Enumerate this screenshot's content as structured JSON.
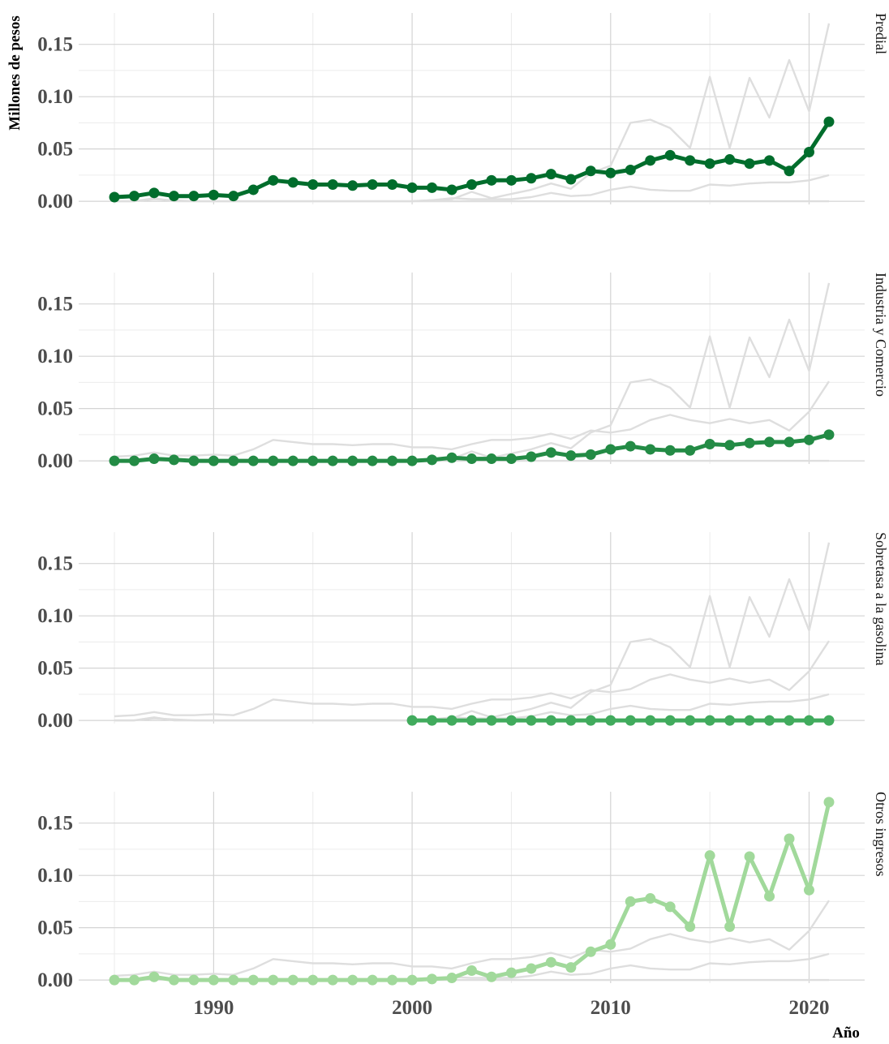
{
  "chart_data": {
    "type": "line",
    "layout": "small-multiples",
    "ylabel": "Millones de pesos",
    "xlabel": "Año",
    "ylim": [
      -0.003,
      0.18
    ],
    "xlim": [
      1983.2,
      2022.8
    ],
    "y_ticks": [
      0.0,
      0.05,
      0.1,
      0.15
    ],
    "y_tick_labels": [
      "0.00",
      "0.05",
      "0.10",
      "0.15"
    ],
    "x_ticks": [
      1990,
      2000,
      2010,
      2020
    ],
    "x_tick_labels": [
      "1990",
      "2000",
      "2010",
      "2020"
    ],
    "grid": true,
    "x": [
      1985,
      1986,
      1987,
      1988,
      1989,
      1990,
      1991,
      1992,
      1993,
      1994,
      1995,
      1996,
      1997,
      1998,
      1999,
      2000,
      2001,
      2002,
      2003,
      2004,
      2005,
      2006,
      2007,
      2008,
      2009,
      2010,
      2011,
      2012,
      2013,
      2014,
      2015,
      2016,
      2017,
      2018,
      2019,
      2020,
      2021
    ],
    "series": [
      {
        "name": "Predial",
        "color": "#006d2c",
        "values": [
          0.004,
          0.005,
          0.008,
          0.005,
          0.005,
          0.006,
          0.005,
          0.011,
          0.02,
          0.018,
          0.016,
          0.016,
          0.015,
          0.016,
          0.016,
          0.013,
          0.013,
          0.011,
          0.016,
          0.02,
          0.02,
          0.022,
          0.026,
          0.021,
          0.029,
          0.027,
          0.03,
          0.039,
          0.044,
          0.039,
          0.036,
          0.04,
          0.036,
          0.039,
          0.029,
          0.047,
          0.076
        ]
      },
      {
        "name": "Industria y Comercio",
        "color": "#238b45",
        "values": [
          0.0,
          0.0,
          0.002,
          0.001,
          0.0,
          0.0,
          0.0,
          0.0,
          0.0,
          0.0,
          0.0,
          0.0,
          0.0,
          0.0,
          0.0,
          0.0,
          0.001,
          0.003,
          0.002,
          0.002,
          0.002,
          0.004,
          0.008,
          0.005,
          0.006,
          0.011,
          0.014,
          0.011,
          0.01,
          0.01,
          0.016,
          0.015,
          0.017,
          0.018,
          0.018,
          0.02,
          0.025
        ]
      },
      {
        "name": "Sobretasa a la gasolina",
        "color": "#41ab5d",
        "values": [
          null,
          null,
          null,
          null,
          null,
          null,
          null,
          null,
          null,
          null,
          null,
          null,
          null,
          null,
          null,
          0.0,
          0.0,
          0.0,
          0.0,
          0.0,
          0.0,
          0.0,
          0.0,
          0.0,
          0.0,
          0.0,
          0.0,
          0.0,
          0.0,
          0.0,
          0.0,
          0.0,
          0.0,
          0.0,
          0.0,
          0.0,
          0.0
        ]
      },
      {
        "name": "Otros ingresos",
        "color": "#a1d99b",
        "values": [
          0.0,
          0.0,
          0.003,
          0.0,
          0.0,
          0.0,
          0.0,
          0.0,
          0.0,
          0.0,
          0.0,
          0.0,
          0.0,
          0.0,
          0.0,
          0.0,
          0.001,
          0.002,
          0.009,
          0.003,
          0.007,
          0.011,
          0.017,
          0.012,
          0.027,
          0.034,
          0.075,
          0.078,
          0.07,
          0.051,
          0.119,
          0.051,
          0.118,
          0.08,
          0.135,
          0.086,
          0.17
        ]
      }
    ],
    "background_line_color": "#dedede"
  }
}
